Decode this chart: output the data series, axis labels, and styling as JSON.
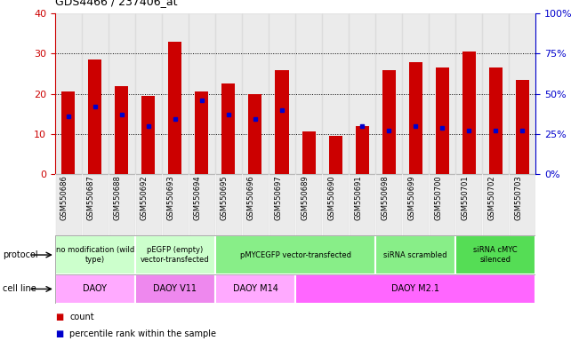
{
  "title": "GDS4466 / 237406_at",
  "samples": [
    "GSM550686",
    "GSM550687",
    "GSM550688",
    "GSM550692",
    "GSM550693",
    "GSM550694",
    "GSM550695",
    "GSM550696",
    "GSM550697",
    "GSM550689",
    "GSM550690",
    "GSM550691",
    "GSM550698",
    "GSM550699",
    "GSM550700",
    "GSM550701",
    "GSM550702",
    "GSM550703"
  ],
  "counts": [
    20.5,
    28.5,
    22,
    19.5,
    33,
    20.5,
    22.5,
    20,
    26,
    10.5,
    9.5,
    12,
    26,
    28,
    26.5,
    30.5,
    26.5,
    23.5
  ],
  "percentile_ranks_pct": [
    36,
    42,
    37,
    30,
    34,
    46,
    37,
    34,
    40,
    0,
    0,
    30,
    27,
    30,
    29,
    27,
    27,
    27
  ],
  "bar_color": "#cc0000",
  "marker_color": "#0000cc",
  "ylim_left": [
    0,
    40
  ],
  "ylim_right": [
    0,
    100
  ],
  "yticks_left": [
    0,
    10,
    20,
    30,
    40
  ],
  "yticks_right": [
    0,
    25,
    50,
    75,
    100
  ],
  "ytick_labels_right": [
    "0%",
    "25%",
    "50%",
    "75%",
    "100%"
  ],
  "protocol_groups": [
    {
      "label": "no modification (wild\ntype)",
      "start": 0,
      "end": 3,
      "color": "#ccffcc"
    },
    {
      "label": "pEGFP (empty)\nvector-transfected",
      "start": 3,
      "end": 6,
      "color": "#ccffcc"
    },
    {
      "label": "pMYCEGFP vector-transfected",
      "start": 6,
      "end": 12,
      "color": "#88ee88"
    },
    {
      "label": "siRNA scrambled",
      "start": 12,
      "end": 15,
      "color": "#88ee88"
    },
    {
      "label": "siRNA cMYC\nsilenced",
      "start": 15,
      "end": 18,
      "color": "#55dd55"
    }
  ],
  "cellline_groups": [
    {
      "label": "DAOY",
      "start": 0,
      "end": 3,
      "color": "#ffaaff"
    },
    {
      "label": "DAOY V11",
      "start": 3,
      "end": 6,
      "color": "#ee88ee"
    },
    {
      "label": "DAOY M14",
      "start": 6,
      "end": 9,
      "color": "#ffaaff"
    },
    {
      "label": "DAOY M2.1",
      "start": 9,
      "end": 18,
      "color": "#ff66ff"
    }
  ],
  "left_axis_color": "#cc0000",
  "right_axis_color": "#0000cc",
  "legend_count_color": "#cc0000",
  "legend_marker_color": "#0000cc",
  "col_bg_color": "#d8d8d8"
}
